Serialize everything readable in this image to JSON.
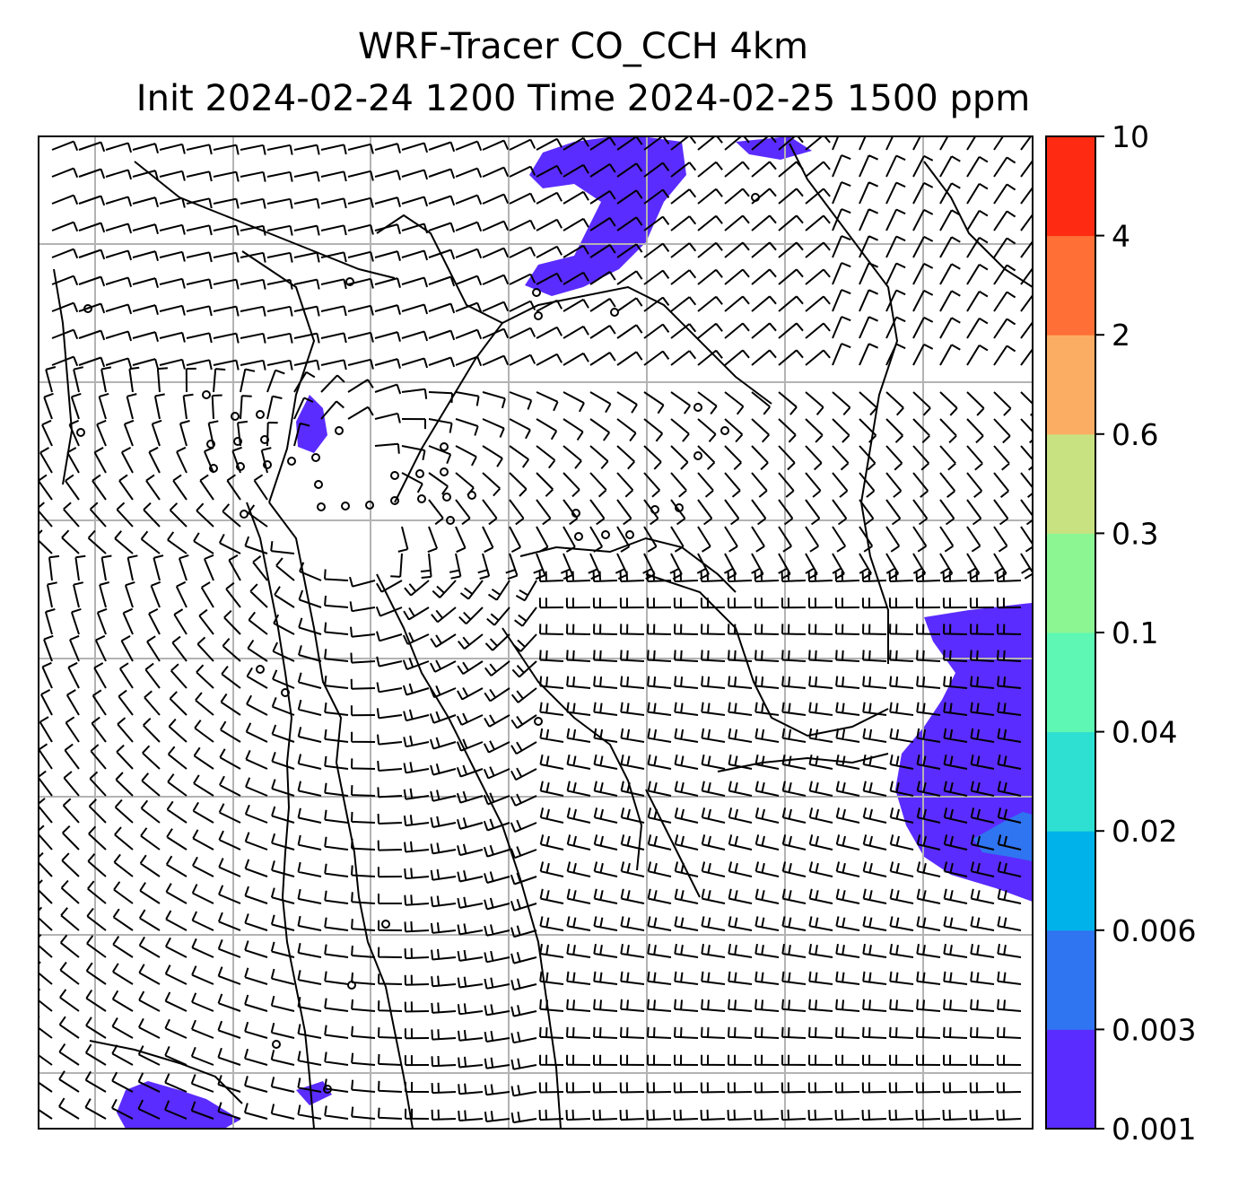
{
  "title": {
    "line1": "WRF-Tracer CO_CCH 4km",
    "line2": "Init 2024-02-24 1200 Time 2024-02-25 1500 ppm"
  },
  "colorbar": {
    "levels": [
      "0.001",
      "0.003",
      "0.006",
      "0.02",
      "0.04",
      "0.1",
      "0.3",
      "0.6",
      "2",
      "4",
      "10"
    ],
    "colors": [
      "#5b2cff",
      "#2f74f0",
      "#00b2ea",
      "#2ee0d2",
      "#5ef7b4",
      "#8cf693",
      "#c8e282",
      "#fbad63",
      "#ff6f36",
      "#ff2a12"
    ]
  },
  "map": {
    "gridlines": true,
    "layers": [
      "tracer-concentration-fill",
      "wind-barbs",
      "country-borders",
      "coastlines"
    ]
  }
}
